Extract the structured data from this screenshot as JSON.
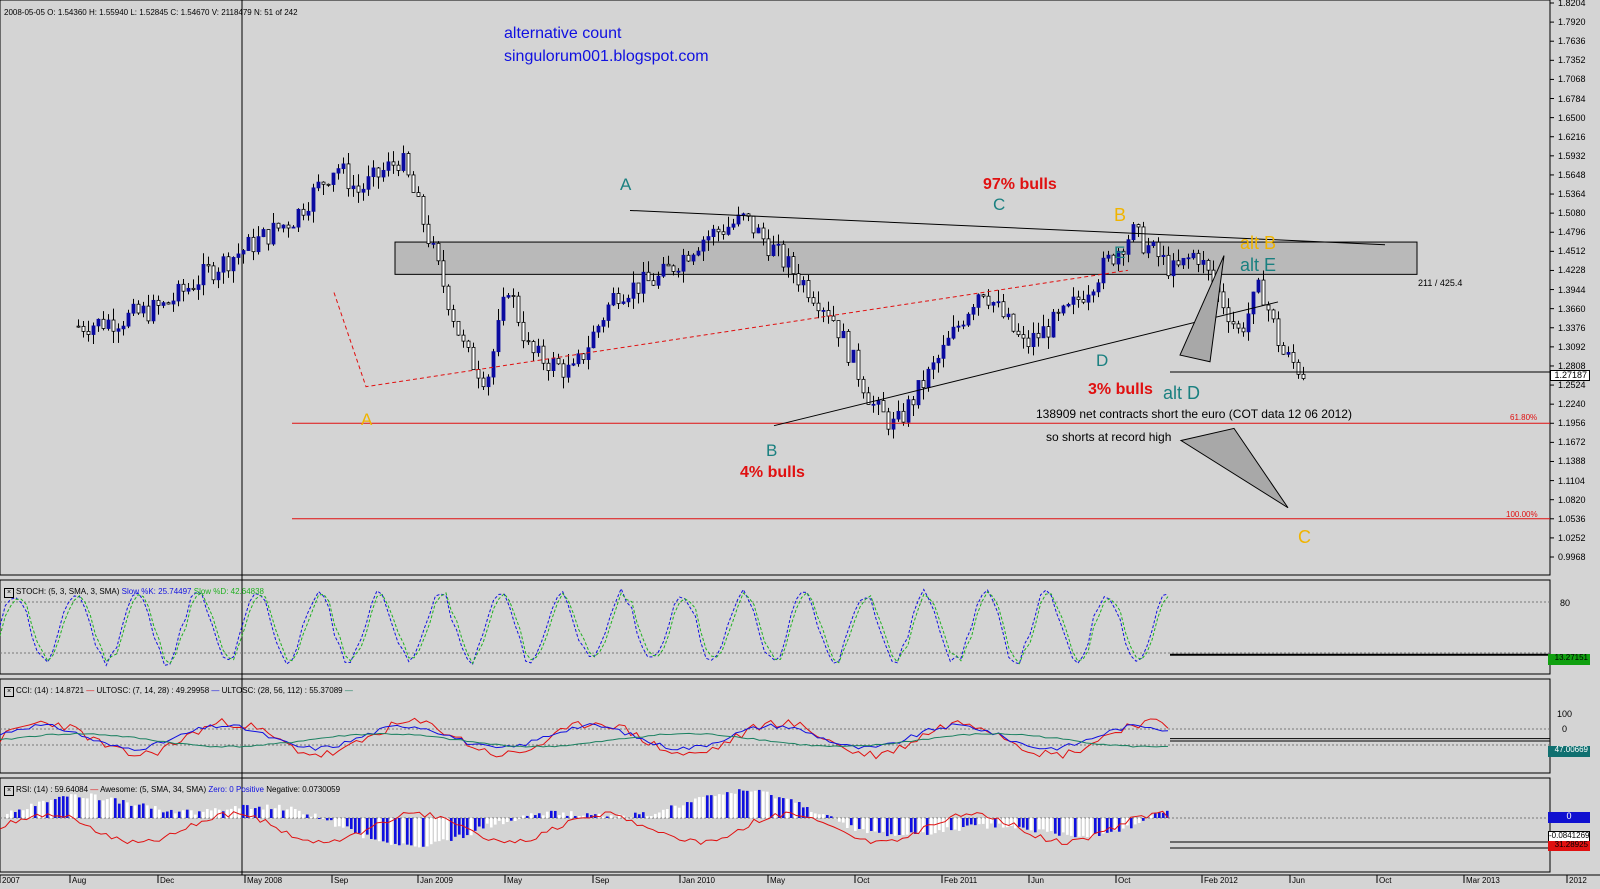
{
  "info_line": "2008-05-05   O: 1.54360   H: 1.55940   L: 1.52845   C: 1.54670   V: 2118479   N: 51 of 242",
  "colors": {
    "background": "#d4d4d4",
    "up": "#0a0aa0",
    "down": "#000000",
    "teal": "#1a8080",
    "orange": "#f0b400",
    "red": "#e01010",
    "blue": "#1010e0",
    "box": "#b4b4b4"
  },
  "header": {
    "title": "alternative count",
    "url": "singulorum001.blogspot.com"
  },
  "price_axis": [
    "1.8204",
    "1.7920",
    "1.7636",
    "1.7352",
    "1.7068",
    "1.6784",
    "1.6500",
    "1.6216",
    "1.5932",
    "1.5648",
    "1.5364",
    "1.5080",
    "1.4796",
    "1.4512",
    "1.4228",
    "1.3944",
    "1.3660",
    "1.3376",
    "1.3092",
    "1.2808",
    "1.2524",
    "1.2240",
    "1.1956",
    "1.1672",
    "1.1388",
    "1.1104",
    "1.0820",
    "1.0536",
    "1.0252",
    "0.9968"
  ],
  "current_price": "1.27187",
  "time_axis": [
    "2007",
    "Aug",
    "Dec",
    "May 2008",
    "Sep",
    "Jan 2009",
    "May",
    "Sep",
    "Jan 2010",
    "May",
    "Oct",
    "Feb 2011",
    "Jun",
    "Oct",
    "Feb 2012",
    "Jun",
    "Oct",
    "Mar 2013",
    "2012"
  ],
  "fib_labels": {
    "f618": "61.80%",
    "f100": "100.00%"
  },
  "ratio_text": "211 / 425.4",
  "annotations": {
    "A_main": "A",
    "B_main": "B",
    "C_main": "C",
    "D_main": "D",
    "E_main": "E",
    "A_orange": "A",
    "B_orange": "B",
    "C_orange": "C",
    "alt_B": "alt B",
    "alt_E": "alt E",
    "alt_D": "alt D",
    "bulls_97": "97% bulls",
    "bulls_4": "4% bulls",
    "bulls_3": "3% bulls",
    "cot_text": "138909 net contracts short the euro (COT data 12 06 2012)",
    "shorts_text": "so shorts at record high"
  },
  "stoch": {
    "label": "STOCH: (5, 3, SMA, 3, SMA)",
    "slow_k": "Slow %K: 25.74497",
    "slow_d": "Slow %D: 42.64838",
    "axis": [
      "80",
      "20"
    ],
    "value": "13.27151"
  },
  "cci": {
    "label": "CCI: (14) : 14.8721",
    "ult1": "ULTOSC: (7, 14, 28) : 49.29958",
    "ult2": "ULTOSC: (28, 56, 112) : 55.37089",
    "axis": [
      "100",
      "0"
    ],
    "value": "47.00669"
  },
  "rsi": {
    "label": "RSI: (14) : 59.64084",
    "awesome": "Awesome: (5, SMA, 34, SMA)",
    "zero": "Zero: 0",
    "positive": "Positive",
    "negative": "Negative: 0.0730059",
    "value_zero": "0",
    "value_awesome": "-0.0841269",
    "value_rsi": "31.28925"
  },
  "chart_data": {
    "type": "candlestick",
    "instrument_hint": "EUR/USD weekly",
    "ylim": [
      0.9968,
      1.8204
    ],
    "x_range": [
      "2007",
      "Mar 2013"
    ],
    "price_path": [
      [
        "2007-04",
        1.34
      ],
      [
        "2007-06",
        1.35
      ],
      [
        "2007-08",
        1.37
      ],
      [
        "2007-10",
        1.42
      ],
      [
        "2007-12",
        1.46
      ],
      [
        "2008-02",
        1.5
      ],
      [
        "2008-04",
        1.58
      ],
      [
        "2008-05",
        1.54
      ],
      [
        "2008-07",
        1.59
      ],
      [
        "2008-08",
        1.5
      ],
      [
        "2008-10",
        1.3
      ],
      [
        "2008-11",
        1.26
      ],
      [
        "2008-12",
        1.4
      ],
      [
        "2009-01",
        1.3
      ],
      [
        "2009-03",
        1.27
      ],
      [
        "2009-05",
        1.39
      ],
      [
        "2009-07",
        1.41
      ],
      [
        "2009-09",
        1.47
      ],
      [
        "2009-11",
        1.5
      ],
      [
        "2010-01",
        1.43
      ],
      [
        "2010-03",
        1.36
      ],
      [
        "2010-05",
        1.22
      ],
      [
        "2010-06",
        1.19
      ],
      [
        "2010-08",
        1.29
      ],
      [
        "2010-10",
        1.4
      ],
      [
        "2010-12",
        1.31
      ],
      [
        "2011-02",
        1.36
      ],
      [
        "2011-05",
        1.48
      ],
      [
        "2011-07",
        1.42
      ],
      [
        "2011-08",
        1.45
      ],
      [
        "2011-10",
        1.33
      ],
      [
        "2011-11",
        1.4
      ],
      [
        "2011-12",
        1.3
      ],
      [
        "2012-01",
        1.27
      ]
    ],
    "fib_levels": [
      {
        "label": "61.80%",
        "value": 1.1956
      },
      {
        "label": "100.00%",
        "value": 1.0536
      }
    ],
    "stoch": {
      "axis": [
        20,
        80
      ],
      "slow_k": 25.74497,
      "slow_d": 42.64838,
      "last": 13.27151
    },
    "cci": {
      "cci": 14.8721,
      "ultosc_7_14_28": 49.29958,
      "ultosc_28_56_112": 55.37089,
      "last": 47.00669
    },
    "rsi": {
      "rsi": 59.64084,
      "last_rsi": 31.28925,
      "awesome": -0.0841269
    }
  }
}
